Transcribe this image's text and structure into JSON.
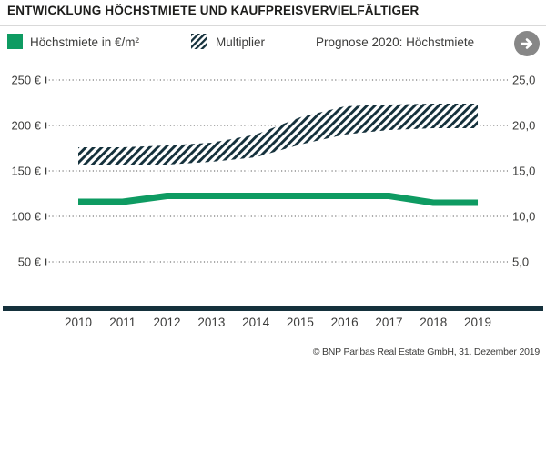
{
  "title": "ENTWICKLUNG HÖCHSTMIETE UND KAUFPREISVERVIELFÄLTIGER",
  "legend": {
    "rent_label": "Höchstmiete in €/m²",
    "multiplier_label": "Multiplier",
    "prognose_label": "Prognose 2020: Höchstmiete",
    "prognose_arrow_icon": "arrow-right-circle"
  },
  "footer": {
    "copyright": "© BNP Paribas Real Estate GmbH, 31. Dezember 2019"
  },
  "colors": {
    "green": "#0e9b62",
    "dark": "#15313c",
    "text": "#3c3c3b",
    "grid": "#8f8f8f",
    "divider": "#d9d9d9",
    "arrow_circle": "#878787"
  },
  "chart_data": {
    "type": "line",
    "x": [
      2010,
      2011,
      2012,
      2013,
      2014,
      2015,
      2016,
      2017,
      2018,
      2019
    ],
    "x_tick_labels": [
      "2010",
      "2011",
      "2012",
      "2013",
      "2014",
      "2015",
      "2016",
      "2017",
      "2018",
      "2019"
    ],
    "series": [
      {
        "name": "Höchstmiete in €/m²",
        "type": "line",
        "axis": "left",
        "color": "#0e9b62",
        "values": [
          116,
          116,
          122.5,
          122.5,
          122.5,
          122.5,
          122.5,
          122.5,
          115,
          115
        ]
      },
      {
        "name": "Multiplier",
        "type": "band",
        "axis": "right",
        "fill": "diagonal-hatch",
        "lower": [
          15.7,
          15.7,
          15.7,
          16.0,
          16.5,
          17.9,
          19.0,
          19.5,
          19.7,
          19.7
        ],
        "upper": [
          17.6,
          17.6,
          17.8,
          18.1,
          19.0,
          20.9,
          22.1,
          22.3,
          22.4,
          22.4
        ]
      }
    ],
    "left_axis": {
      "ticks": [
        250,
        200,
        150,
        100,
        50
      ],
      "tick_labels": [
        "250 €",
        "200 €",
        "150 €",
        "100 €",
        "50 €"
      ],
      "range": [
        0,
        250
      ],
      "unit": "€"
    },
    "right_axis": {
      "ticks": [
        25,
        20,
        15,
        10,
        5
      ],
      "tick_labels": [
        "25,0",
        "20,0",
        "15,0",
        "10,0",
        "5,0"
      ],
      "range": [
        0,
        25
      ]
    },
    "grid": "dotted-horizontal",
    "legend_position": "top"
  }
}
